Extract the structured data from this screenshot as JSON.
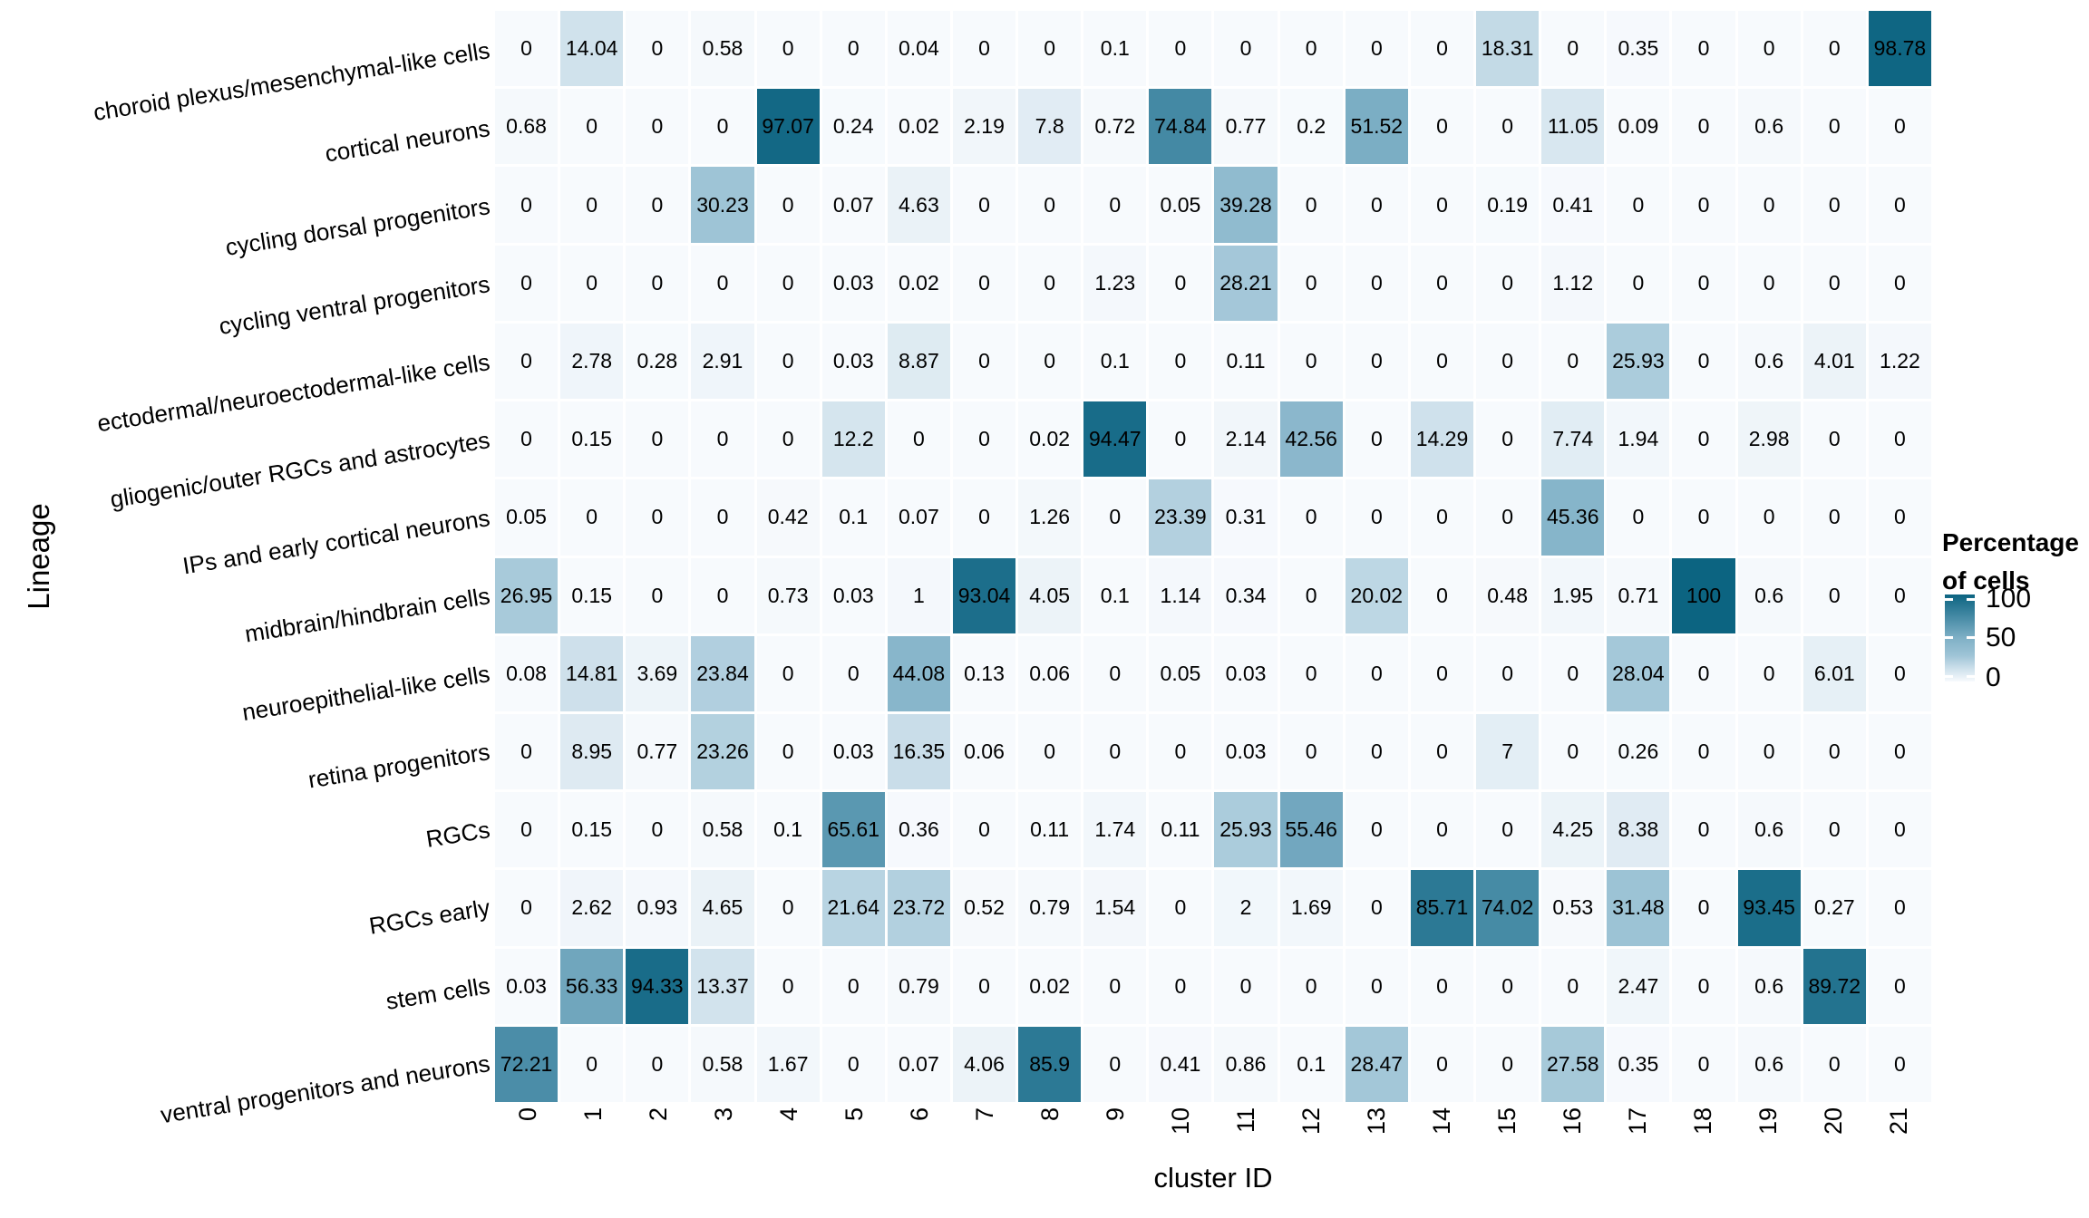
{
  "figure": {
    "x_axis_title": "cluster ID",
    "y_axis_title": "Lineage"
  },
  "legend": {
    "title_lines": [
      "Percentage",
      "of cells"
    ],
    "tick_labels": [
      "100",
      "50",
      "0"
    ]
  },
  "chart_data": {
    "type": "heatmap",
    "title": "",
    "xlabel": "cluster ID",
    "ylabel": "Lineage",
    "value_unit": "percentage of cells",
    "value_range": [
      0,
      100
    ],
    "legend_title": "Percentage of cells",
    "legend_ticks": [
      100,
      50,
      0
    ],
    "grid": false,
    "legend_position": "right",
    "categories_x": [
      "0",
      "1",
      "2",
      "3",
      "4",
      "5",
      "6",
      "7",
      "8",
      "9",
      "10",
      "11",
      "12",
      "13",
      "14",
      "15",
      "16",
      "17",
      "18",
      "19",
      "20",
      "21"
    ],
    "rows": [
      {
        "lineage": "choroid plexus/mesenchymal-like cells",
        "values": [
          "0",
          "14.04",
          "0",
          "0.58",
          "0",
          "0",
          "0.04",
          "0",
          "0",
          "0.1",
          "0",
          "0",
          "0",
          "0",
          "0",
          "18.31",
          "0",
          "0.35",
          "0",
          "0",
          "0",
          "98.78"
        ]
      },
      {
        "lineage": "cortical neurons",
        "values": [
          "0.68",
          "0",
          "0",
          "0",
          "97.07",
          "0.24",
          "0.02",
          "2.19",
          "7.8",
          "0.72",
          "74.84",
          "0.77",
          "0.2",
          "51.52",
          "0",
          "0",
          "11.05",
          "0.09",
          "0",
          "0.6",
          "0",
          "0"
        ]
      },
      {
        "lineage": "cycling dorsal progenitors",
        "values": [
          "0",
          "0",
          "0",
          "30.23",
          "0",
          "0.07",
          "4.63",
          "0",
          "0",
          "0",
          "0.05",
          "39.28",
          "0",
          "0",
          "0",
          "0.19",
          "0.41",
          "0",
          "0",
          "0",
          "0",
          "0"
        ]
      },
      {
        "lineage": "cycling ventral progenitors",
        "values": [
          "0",
          "0",
          "0",
          "0",
          "0",
          "0.03",
          "0.02",
          "0",
          "0",
          "1.23",
          "0",
          "28.21",
          "0",
          "0",
          "0",
          "0",
          "1.12",
          "0",
          "0",
          "0",
          "0",
          "0"
        ]
      },
      {
        "lineage": "ectodermal/neuroectodermal-like cells",
        "values": [
          "0",
          "2.78",
          "0.28",
          "2.91",
          "0",
          "0.03",
          "8.87",
          "0",
          "0",
          "0.1",
          "0",
          "0.11",
          "0",
          "0",
          "0",
          "0",
          "0",
          "25.93",
          "0",
          "0.6",
          "4.01",
          "1.22"
        ]
      },
      {
        "lineage": "gliogenic/outer RGCs and astrocytes",
        "values": [
          "0",
          "0.15",
          "0",
          "0",
          "0",
          "12.2",
          "0",
          "0",
          "0.02",
          "94.47",
          "0",
          "2.14",
          "42.56",
          "0",
          "14.29",
          "0",
          "7.74",
          "1.94",
          "0",
          "2.98",
          "0",
          "0"
        ]
      },
      {
        "lineage": "IPs and early cortical neurons",
        "values": [
          "0.05",
          "0",
          "0",
          "0",
          "0.42",
          "0.1",
          "0.07",
          "0",
          "1.26",
          "0",
          "23.39",
          "0.31",
          "0",
          "0",
          "0",
          "0",
          "45.36",
          "0",
          "0",
          "0",
          "0",
          "0"
        ]
      },
      {
        "lineage": "midbrain/hindbrain cells",
        "values": [
          "26.95",
          "0.15",
          "0",
          "0",
          "0.73",
          "0.03",
          "1",
          "93.04",
          "4.05",
          "0.1",
          "1.14",
          "0.34",
          "0",
          "20.02",
          "0",
          "0.48",
          "1.95",
          "0.71",
          "100",
          "0.6",
          "0",
          "0"
        ]
      },
      {
        "lineage": "neuroepithelial-like cells",
        "values": [
          "0.08",
          "14.81",
          "3.69",
          "23.84",
          "0",
          "0",
          "44.08",
          "0.13",
          "0.06",
          "0",
          "0.05",
          "0.03",
          "0",
          "0",
          "0",
          "0",
          "0",
          "28.04",
          "0",
          "0",
          "6.01",
          "0"
        ]
      },
      {
        "lineage": "retina progenitors",
        "values": [
          "0",
          "8.95",
          "0.77",
          "23.26",
          "0",
          "0.03",
          "16.35",
          "0.06",
          "0",
          "0",
          "0",
          "0.03",
          "0",
          "0",
          "0",
          "7",
          "0",
          "0.26",
          "0",
          "0",
          "0",
          "0"
        ]
      },
      {
        "lineage": "RGCs",
        "values": [
          "0",
          "0.15",
          "0",
          "0.58",
          "0.1",
          "65.61",
          "0.36",
          "0",
          "0.11",
          "1.74",
          "0.11",
          "25.93",
          "55.46",
          "0",
          "0",
          "0",
          "4.25",
          "8.38",
          "0",
          "0.6",
          "0",
          "0"
        ]
      },
      {
        "lineage": "RGCs early",
        "values": [
          "0",
          "2.62",
          "0.93",
          "4.65",
          "0",
          "21.64",
          "23.72",
          "0.52",
          "0.79",
          "1.54",
          "0",
          "2",
          "1.69",
          "0",
          "85.71",
          "74.02",
          "0.53",
          "31.48",
          "0",
          "93.45",
          "0.27",
          "0"
        ]
      },
      {
        "lineage": "stem cells",
        "values": [
          "0.03",
          "56.33",
          "94.33",
          "13.37",
          "0",
          "0",
          "0.79",
          "0",
          "0.02",
          "0",
          "0",
          "0",
          "0",
          "0",
          "0",
          "0",
          "0",
          "2.47",
          "0",
          "0.6",
          "89.72",
          "0"
        ]
      },
      {
        "lineage": "ventral progenitors and neurons",
        "values": [
          "72.21",
          "0",
          "0",
          "0.58",
          "1.67",
          "0",
          "0.07",
          "4.06",
          "85.9",
          "0",
          "0.41",
          "0.86",
          "0.1",
          "28.47",
          "0",
          "0",
          "27.58",
          "0.35",
          "0",
          "0.6",
          "0",
          "0"
        ]
      }
    ],
    "color_scale": {
      "low_color": "#f7fafd",
      "high_color": "#0c6481",
      "stops": [
        {
          "value": 0,
          "color": "#f7fafd"
        },
        {
          "value": 15,
          "color": "#cde0eb"
        },
        {
          "value": 30,
          "color": "#9ec4d6"
        },
        {
          "value": 50,
          "color": "#7fb0c6"
        },
        {
          "value": 75,
          "color": "#4489a4"
        },
        {
          "value": 100,
          "color": "#0c6481"
        }
      ]
    }
  }
}
